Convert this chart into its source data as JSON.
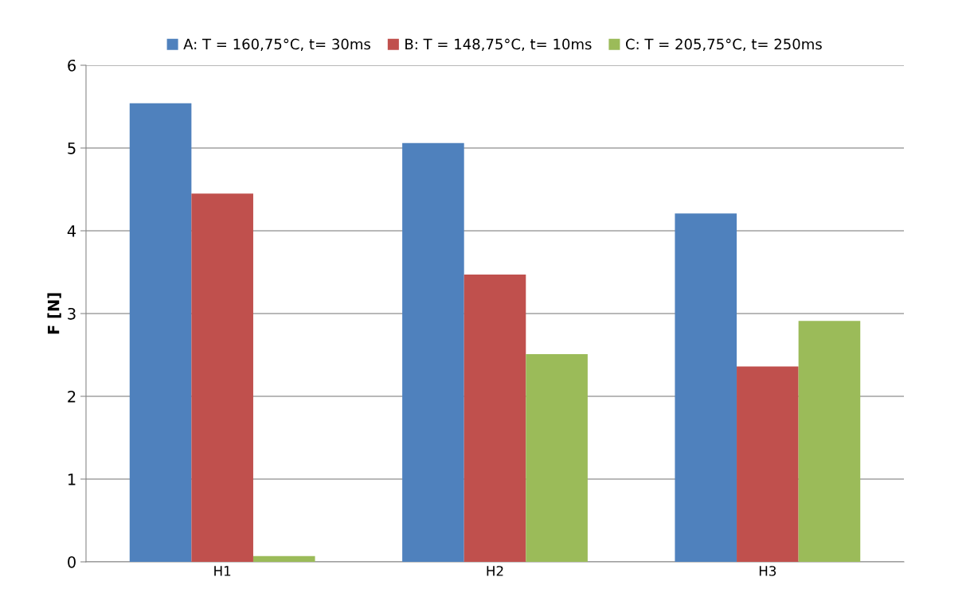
{
  "chart_data": {
    "type": "bar",
    "ylabel": "F [N]",
    "categories": [
      "H1",
      "H2",
      "H3"
    ],
    "series": [
      {
        "name": "A: T = 160,75°C, t= 30ms",
        "color": "#4f81bd",
        "values": [
          5.54,
          5.06,
          4.21
        ]
      },
      {
        "name": "B: T = 148,75°C, t= 10ms",
        "color": "#c0504d",
        "values": [
          4.45,
          3.47,
          2.36
        ]
      },
      {
        "name": "C: T = 205,75°C, t= 250ms",
        "color": "#9bbb59",
        "values": [
          0.07,
          2.51,
          2.91
        ]
      }
    ],
    "ylim": [
      0,
      6
    ],
    "yticks": [
      0,
      1,
      2,
      3,
      4,
      5,
      6
    ],
    "grid": "y",
    "legend": "top"
  }
}
